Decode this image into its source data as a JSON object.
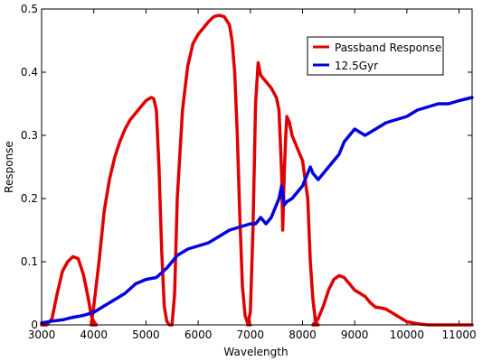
{
  "chart_data": {
    "type": "line",
    "title": "",
    "xlabel": "Wavelength",
    "ylabel": "Response",
    "xlim": [
      3000,
      11250
    ],
    "ylim": [
      0,
      0.5
    ],
    "x_ticks": [
      3000,
      4000,
      5000,
      6000,
      7000,
      8000,
      9000,
      10000,
      11000
    ],
    "y_ticks": [
      0,
      0.1,
      0.2,
      0.3,
      0.4,
      0.5
    ],
    "grid": false,
    "legend": "top-right",
    "series": [
      {
        "name": "Passband Response",
        "color": "#e00000",
        "x": [
          3000,
          3100,
          3200,
          3300,
          3400,
          3500,
          3600,
          3700,
          3800,
          3900,
          3950,
          4000,
          4050,
          3950,
          4000,
          4100,
          4200,
          4300,
          4400,
          4500,
          4600,
          4700,
          4800,
          4900,
          5000,
          5100,
          5150,
          5200,
          5250,
          5300,
          5350,
          5400,
          5450,
          5500,
          5500,
          5550,
          5600,
          5700,
          5800,
          5900,
          6000,
          6100,
          6200,
          6300,
          6400,
          6500,
          6600,
          6650,
          6700,
          6750,
          6800,
          6850,
          6900,
          6950,
          7000,
          6950,
          7000,
          7050,
          7100,
          7150,
          7200,
          7300,
          7400,
          7500,
          7550,
          7600,
          7620,
          7650,
          7680,
          7700,
          7750,
          7800,
          7900,
          8000,
          8100,
          8150,
          8200,
          8250,
          8300,
          8200,
          8300,
          8400,
          8500,
          8600,
          8700,
          8800,
          8900,
          9000,
          9100,
          9200,
          9300,
          9400,
          9500,
          9600,
          9700,
          9800,
          9900,
          10000,
          10200,
          10400,
          10600,
          10800,
          11000,
          11250
        ],
        "y": [
          0.0,
          0.0,
          0.01,
          0.05,
          0.085,
          0.1,
          0.108,
          0.105,
          0.08,
          0.04,
          0.015,
          0.005,
          0.0,
          0.0,
          0.03,
          0.1,
          0.18,
          0.23,
          0.265,
          0.29,
          0.31,
          0.325,
          0.335,
          0.345,
          0.355,
          0.36,
          0.358,
          0.34,
          0.25,
          0.12,
          0.03,
          0.005,
          0.0,
          0.0,
          0.0,
          0.05,
          0.2,
          0.34,
          0.41,
          0.445,
          0.46,
          0.47,
          0.48,
          0.488,
          0.49,
          0.488,
          0.475,
          0.45,
          0.4,
          0.3,
          0.17,
          0.06,
          0.015,
          0.002,
          0.0,
          0.0,
          0.02,
          0.15,
          0.35,
          0.415,
          0.395,
          0.385,
          0.375,
          0.36,
          0.34,
          0.24,
          0.15,
          0.24,
          0.3,
          0.33,
          0.32,
          0.3,
          0.28,
          0.26,
          0.2,
          0.1,
          0.04,
          0.005,
          0.0,
          0.0,
          0.01,
          0.03,
          0.055,
          0.072,
          0.078,
          0.075,
          0.065,
          0.055,
          0.05,
          0.045,
          0.035,
          0.028,
          0.027,
          0.025,
          0.02,
          0.015,
          0.01,
          0.005,
          0.002,
          0.0,
          0.0,
          0.0,
          0.0,
          0.0
        ]
      },
      {
        "name": "12.5Gyr",
        "color": "#0000e0",
        "x": [
          3000,
          3200,
          3400,
          3600,
          3800,
          4000,
          4200,
          4400,
          4600,
          4800,
          5000,
          5200,
          5400,
          5600,
          5800,
          6000,
          6200,
          6400,
          6600,
          6800,
          7000,
          7100,
          7200,
          7300,
          7400,
          7500,
          7550,
          7600,
          7650,
          7700,
          7800,
          7900,
          8000,
          8100,
          8150,
          8200,
          8300,
          8400,
          8500,
          8600,
          8700,
          8800,
          8900,
          9000,
          9200,
          9400,
          9600,
          9800,
          10000,
          10200,
          10400,
          10600,
          10800,
          11000,
          11250
        ],
        "y": [
          0.003,
          0.006,
          0.008,
          0.012,
          0.015,
          0.02,
          0.03,
          0.04,
          0.05,
          0.065,
          0.072,
          0.075,
          0.09,
          0.11,
          0.12,
          0.125,
          0.13,
          0.14,
          0.15,
          0.155,
          0.16,
          0.16,
          0.17,
          0.16,
          0.17,
          0.19,
          0.2,
          0.22,
          0.19,
          0.195,
          0.2,
          0.21,
          0.22,
          0.24,
          0.25,
          0.24,
          0.23,
          0.24,
          0.25,
          0.26,
          0.27,
          0.29,
          0.3,
          0.31,
          0.3,
          0.31,
          0.32,
          0.325,
          0.33,
          0.34,
          0.345,
          0.35,
          0.35,
          0.355,
          0.36
        ]
      }
    ]
  }
}
